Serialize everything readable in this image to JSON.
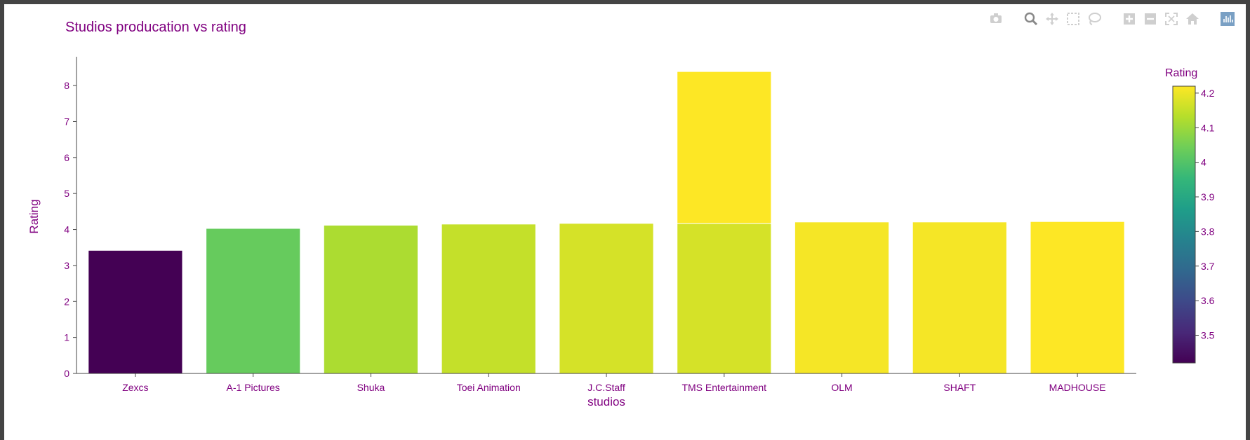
{
  "modebar": {
    "icons": [
      "camera-icon",
      "zoom-icon",
      "pan-icon",
      "box-select-icon",
      "lasso-icon",
      "zoom-in-icon",
      "zoom-out-icon",
      "autoscale-icon",
      "home-icon",
      "plotly-logo-icon"
    ]
  },
  "colors": {
    "text": "#800080",
    "axis": "#444444",
    "colorscale": [
      "#440154",
      "#482878",
      "#3e4989",
      "#31688e",
      "#26828e",
      "#1f9e89",
      "#35b779",
      "#6ece58",
      "#b5de2b",
      "#fde725"
    ]
  },
  "chart_data": {
    "type": "bar",
    "title": "Studios producation vs rating",
    "xlabel": "studios",
    "ylabel": "Rating",
    "categories": [
      "Zexcs",
      "A-1 Pictures",
      "Shuka",
      "Toei Animation",
      "J.C.Staff",
      "TMS Entertainment",
      "OLM",
      "SHAFT",
      "MADHOUSE"
    ],
    "stacked_segments": [
      [
        3.42
      ],
      [
        4.03
      ],
      [
        4.12
      ],
      [
        4.15
      ],
      [
        4.17
      ],
      [
        4.17,
        4.22
      ],
      [
        4.21
      ],
      [
        4.21
      ],
      [
        4.22
      ]
    ],
    "ylim": [
      0,
      8.8
    ],
    "yticks": [
      0,
      1,
      2,
      3,
      4,
      5,
      6,
      7,
      8
    ],
    "grid": false,
    "barmode": "stack",
    "colorbar": {
      "title": "Rating",
      "range": [
        3.42,
        4.22
      ],
      "ticks": [
        3.5,
        3.6,
        3.7,
        3.8,
        3.9,
        4,
        4.1,
        4.2
      ],
      "tick_labels": [
        "3.5",
        "3.6",
        "3.7",
        "3.8",
        "3.9",
        "4",
        "4.1",
        "4.2"
      ],
      "colorscale": "Viridis"
    }
  }
}
